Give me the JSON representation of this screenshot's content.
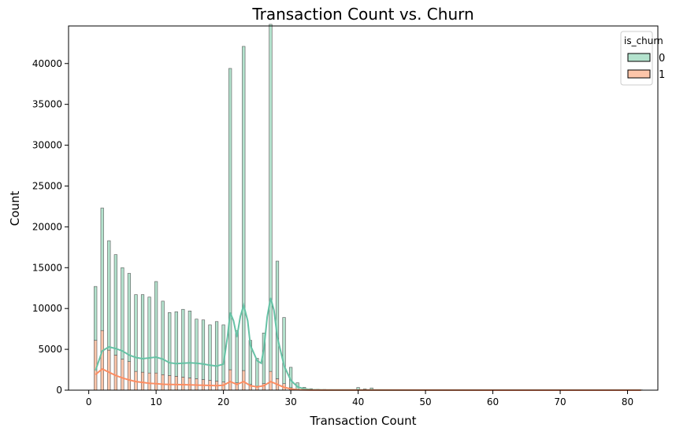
{
  "chart_data": {
    "type": "bar",
    "title": "Transaction Count vs. Churn",
    "xlabel": "Transaction Count",
    "ylabel": "Count",
    "xlim": [
      -3,
      84.5
    ],
    "ylim": [
      0,
      44600
    ],
    "xticks": [
      0,
      10,
      20,
      30,
      40,
      50,
      60,
      70,
      80
    ],
    "yticks": [
      0,
      5000,
      10000,
      15000,
      20000,
      25000,
      30000,
      35000,
      40000
    ],
    "stacked": true,
    "legend": {
      "title": "is_churn",
      "position": "top-right",
      "entries": [
        "0",
        "1"
      ]
    },
    "colors": {
      "not_churn_fill": "#b3e2cd",
      "not_churn_edge": "#66c2a5",
      "churn_fill": "#fcc5a9",
      "churn_edge": "#fc8d62",
      "bar_edge": "#555555"
    },
    "x": [
      1,
      2,
      3,
      4,
      5,
      6,
      7,
      8,
      9,
      10,
      11,
      12,
      13,
      14,
      15,
      16,
      17,
      18,
      19,
      20,
      21,
      22,
      23,
      24,
      25,
      26,
      27,
      28,
      29,
      30,
      31,
      32,
      33,
      34,
      35,
      36,
      37,
      38,
      39,
      40,
      41,
      42,
      43,
      44,
      45,
      46,
      47,
      48,
      49,
      50,
      55,
      60,
      65,
      70,
      75,
      80,
      82
    ],
    "series": [
      {
        "name": "0",
        "values": [
          6600,
          15000,
          13400,
          12300,
          11200,
          10800,
          9400,
          9500,
          9300,
          11200,
          9000,
          7700,
          7900,
          8300,
          8200,
          7300,
          7300,
          6800,
          7300,
          7000,
          36900,
          6400,
          39700,
          5400,
          3400,
          6200,
          42500,
          14400,
          8100,
          2500,
          800,
          300,
          150,
          100,
          80,
          60,
          50,
          50,
          50,
          300,
          150,
          250,
          40,
          30,
          30,
          30,
          30,
          30,
          30,
          30,
          30,
          30,
          30,
          30,
          30,
          30,
          30
        ]
      },
      {
        "name": "1",
        "values": [
          6100,
          7300,
          4900,
          4300,
          3800,
          3500,
          2300,
          2200,
          2100,
          2100,
          1900,
          1800,
          1700,
          1600,
          1500,
          1400,
          1300,
          1200,
          1100,
          1000,
          2500,
          900,
          2400,
          700,
          500,
          800,
          2300,
          1400,
          800,
          300,
          100,
          50,
          30,
          20,
          10,
          10,
          10,
          10,
          10,
          30,
          10,
          20,
          5,
          5,
          5,
          5,
          5,
          5,
          5,
          5,
          5,
          5,
          5,
          5,
          5,
          5,
          5
        ]
      }
    ],
    "kde": [
      {
        "name": "0",
        "points": [
          [
            1,
            2400
          ],
          [
            2,
            4800
          ],
          [
            3,
            5300
          ],
          [
            4,
            5100
          ],
          [
            5,
            4800
          ],
          [
            6,
            4300
          ],
          [
            7,
            4000
          ],
          [
            8,
            3850
          ],
          [
            9,
            3950
          ],
          [
            10,
            4050
          ],
          [
            11,
            3800
          ],
          [
            12,
            3350
          ],
          [
            13,
            3250
          ],
          [
            14,
            3300
          ],
          [
            15,
            3350
          ],
          [
            16,
            3300
          ],
          [
            17,
            3200
          ],
          [
            18,
            3050
          ],
          [
            19,
            2950
          ],
          [
            20,
            3200
          ],
          [
            20.6,
            6500
          ],
          [
            21,
            9500
          ],
          [
            21.5,
            8500
          ],
          [
            22,
            6500
          ],
          [
            22.5,
            9000
          ],
          [
            23,
            10400
          ],
          [
            23.6,
            8500
          ],
          [
            24,
            5500
          ],
          [
            25,
            3600
          ],
          [
            25.6,
            3300
          ],
          [
            26,
            5000
          ],
          [
            26.5,
            9000
          ],
          [
            27,
            11300
          ],
          [
            27.5,
            9800
          ],
          [
            28,
            6500
          ],
          [
            29,
            3000
          ],
          [
            30,
            1200
          ],
          [
            31,
            400
          ],
          [
            32,
            150
          ],
          [
            33,
            60
          ],
          [
            35,
            30
          ],
          [
            40,
            20
          ],
          [
            50,
            10
          ],
          [
            82,
            5
          ]
        ]
      },
      {
        "name": "1",
        "points": [
          [
            1,
            1900
          ],
          [
            2,
            2600
          ],
          [
            3,
            2200
          ],
          [
            4,
            1800
          ],
          [
            5,
            1500
          ],
          [
            6,
            1250
          ],
          [
            7,
            1050
          ],
          [
            8,
            950
          ],
          [
            9,
            850
          ],
          [
            10,
            800
          ],
          [
            11,
            720
          ],
          [
            12,
            700
          ],
          [
            13,
            680
          ],
          [
            14,
            670
          ],
          [
            15,
            650
          ],
          [
            16,
            630
          ],
          [
            17,
            600
          ],
          [
            18,
            580
          ],
          [
            19,
            560
          ],
          [
            20,
            600
          ],
          [
            21,
            1050
          ],
          [
            22,
            700
          ],
          [
            23,
            1050
          ],
          [
            24,
            550
          ],
          [
            25,
            400
          ],
          [
            26,
            550
          ],
          [
            27,
            1050
          ],
          [
            28,
            700
          ],
          [
            29,
            350
          ],
          [
            30,
            150
          ],
          [
            31,
            50
          ],
          [
            33,
            10
          ],
          [
            82,
            2
          ]
        ]
      }
    ]
  }
}
